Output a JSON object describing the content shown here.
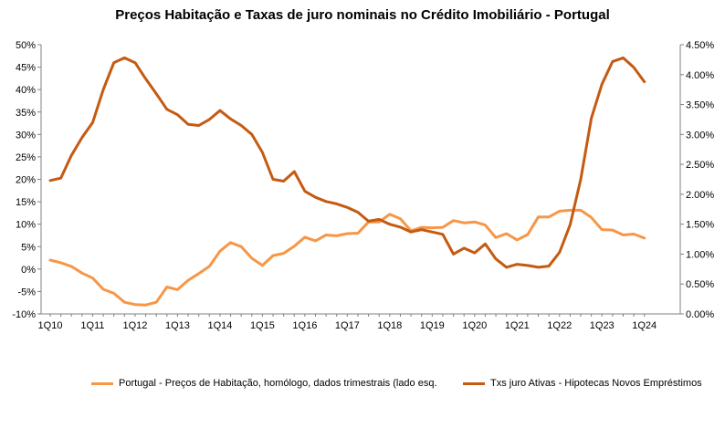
{
  "chart_data": {
    "type": "line",
    "title": "Preços Habitação e Taxas de juro nominais no Crédito Imobiliário -  Portugal",
    "x_tick_labels": [
      "1Q10",
      "1Q11",
      "1Q12",
      "1Q13",
      "1Q14",
      "1Q15",
      "1Q16",
      "1Q17",
      "1Q18",
      "1Q19",
      "1Q20",
      "1Q21",
      "1Q22",
      "1Q23",
      "1Q24"
    ],
    "left_axis": {
      "ylim": [
        -10,
        50
      ],
      "tick_labels": [
        "-10%",
        "-5%",
        "0%",
        "5%",
        "10%",
        "15%",
        "20%",
        "25%",
        "30%",
        "35%",
        "40%",
        "45%",
        "50%"
      ]
    },
    "right_axis": {
      "ylim": [
        0.0,
        4.5
      ],
      "tick_labels": [
        "0.00%",
        "0.50%",
        "1.00%",
        "1.50%",
        "2.00%",
        "2.50%",
        "3.00%",
        "3.50%",
        "4.00%",
        "4.50%"
      ]
    },
    "grid": false,
    "legend_position": "bottom",
    "series": [
      {
        "name": "Portugal - Preços de Habitação, homólogo, dados trimestrais (lado esq.",
        "axis": "left",
        "color": "#F79646",
        "x_start": "1Q10",
        "step": "quarter",
        "values": [
          2.0,
          1.4,
          0.6,
          -0.9,
          -2.0,
          -4.5,
          -5.4,
          -7.4,
          -7.9,
          -8.0,
          -7.4,
          -4.0,
          -4.6,
          -2.5,
          -1.0,
          0.6,
          4.0,
          5.9,
          5.0,
          2.4,
          0.8,
          3.0,
          3.5,
          5.1,
          7.1,
          6.3,
          7.6,
          7.4,
          7.9,
          8.0,
          10.5,
          10.5,
          12.2,
          11.2,
          8.5,
          9.3,
          9.2,
          9.3,
          10.8,
          10.3,
          10.5,
          9.8,
          7.0,
          7.9,
          6.5,
          7.7,
          11.6,
          11.6,
          12.9,
          13.1,
          13.1,
          11.5,
          8.8,
          8.7,
          7.6,
          7.8,
          6.9
        ]
      },
      {
        "name": "Txs juro Ativas - Hipotecas Novos Empréstimos",
        "axis": "right",
        "color": "#C55A11",
        "x_start": "1Q10",
        "step": "quarter",
        "values": [
          2.23,
          2.27,
          2.65,
          2.95,
          3.2,
          3.75,
          4.2,
          4.28,
          4.2,
          3.93,
          3.68,
          3.42,
          3.33,
          3.17,
          3.15,
          3.25,
          3.4,
          3.26,
          3.15,
          3.0,
          2.7,
          2.25,
          2.22,
          2.38,
          2.05,
          1.95,
          1.88,
          1.84,
          1.78,
          1.7,
          1.55,
          1.58,
          1.5,
          1.45,
          1.37,
          1.41,
          1.37,
          1.33,
          1.0,
          1.1,
          1.02,
          1.17,
          0.92,
          0.78,
          0.83,
          0.81,
          0.78,
          0.8,
          1.03,
          1.49,
          2.25,
          3.27,
          3.84,
          4.22,
          4.28,
          4.12,
          3.88
        ]
      }
    ]
  }
}
